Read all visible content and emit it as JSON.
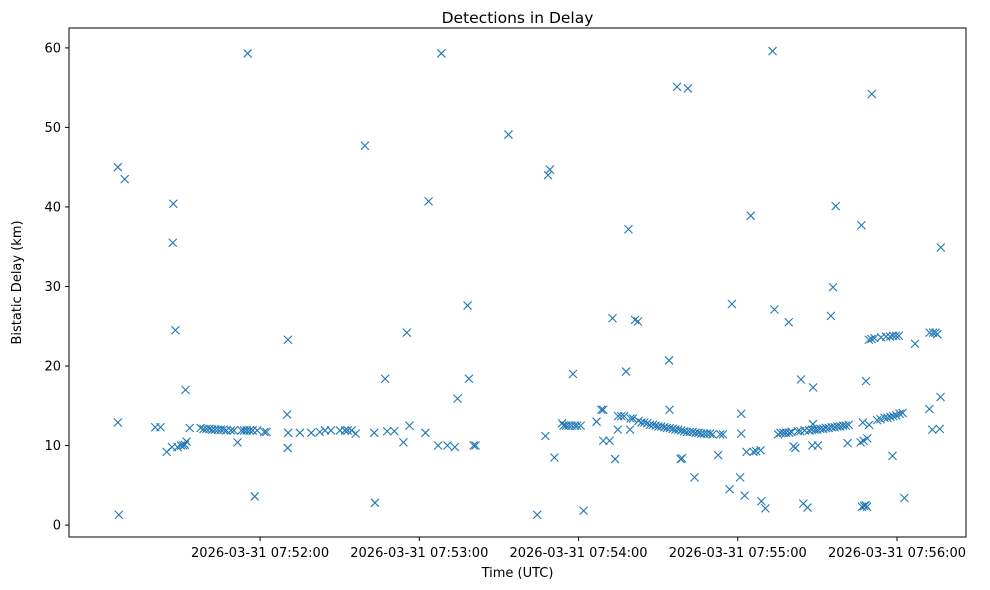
{
  "chart_data": {
    "type": "scatter",
    "title": "Detections in Delay",
    "xlabel": "Time (UTC)",
    "ylabel": "Bistatic Delay (km)",
    "marker": "x",
    "color": "#1f77b4",
    "x_unit": "seconds since 2026-03-31 07:51:00 UTC",
    "xlim": [
      -12,
      326
    ],
    "ylim": [
      -1.5,
      62.5
    ],
    "xticks": [
      {
        "value": 60,
        "label": "2026-03-31 07:52:00"
      },
      {
        "value": 120,
        "label": "2026-03-31 07:53:00"
      },
      {
        "value": 180,
        "label": "2026-03-31 07:54:00"
      },
      {
        "value": 240,
        "label": "2026-03-31 07:55:00"
      },
      {
        "value": 300,
        "label": "2026-03-31 07:56:00"
      }
    ],
    "yticks": [
      {
        "value": 0,
        "label": "0"
      },
      {
        "value": 10,
        "label": "10"
      },
      {
        "value": 20,
        "label": "20"
      },
      {
        "value": 30,
        "label": "30"
      },
      {
        "value": 40,
        "label": "40"
      },
      {
        "value": 50,
        "label": "50"
      },
      {
        "value": 60,
        "label": "60"
      }
    ],
    "points": [
      [
        6.4,
        45.0
      ],
      [
        6.4,
        12.9
      ],
      [
        6.8,
        1.3
      ],
      [
        9.0,
        43.5
      ],
      [
        20.5,
        12.3
      ],
      [
        22.5,
        12.3
      ],
      [
        24.8,
        9.2
      ],
      [
        27.3,
        40.4
      ],
      [
        27.1,
        35.5
      ],
      [
        28.1,
        24.5
      ],
      [
        26.8,
        9.8
      ],
      [
        28.9,
        9.8
      ],
      [
        30.2,
        10.0
      ],
      [
        31.1,
        10.0
      ],
      [
        31.9,
        17.0
      ],
      [
        32.3,
        10.5
      ],
      [
        31.7,
        10.1
      ],
      [
        33.5,
        12.2
      ],
      [
        37.6,
        12.2
      ],
      [
        38.7,
        12.1
      ],
      [
        39.8,
        12.1
      ],
      [
        40.9,
        12.1
      ],
      [
        41.9,
        12.0
      ],
      [
        43.0,
        12.0
      ],
      [
        44.1,
        12.0
      ],
      [
        45.2,
        12.0
      ],
      [
        46.2,
        12.0
      ],
      [
        47.3,
        11.9
      ],
      [
        49.0,
        11.9
      ],
      [
        50.1,
        11.9
      ],
      [
        51.5,
        10.4
      ],
      [
        53.0,
        11.9
      ],
      [
        54.0,
        11.9
      ],
      [
        55.0,
        11.9
      ],
      [
        55.3,
        59.3
      ],
      [
        56.1,
        11.9
      ],
      [
        57.2,
        11.9
      ],
      [
        58.0,
        3.6
      ],
      [
        58.9,
        11.9
      ],
      [
        61.6,
        11.7
      ],
      [
        62.4,
        11.7
      ],
      [
        70.5,
        23.3
      ],
      [
        70.2,
        13.9
      ],
      [
        70.4,
        9.7
      ],
      [
        70.6,
        11.6
      ],
      [
        75.0,
        11.6
      ],
      [
        79.3,
        11.6
      ],
      [
        82.5,
        11.7
      ],
      [
        84.5,
        11.9
      ],
      [
        86.7,
        11.9
      ],
      [
        90.1,
        11.9
      ],
      [
        92.0,
        11.9
      ],
      [
        93.0,
        11.9
      ],
      [
        94.5,
        11.9
      ],
      [
        96.0,
        11.5
      ],
      [
        99.5,
        47.7
      ],
      [
        103.0,
        11.6
      ],
      [
        103.3,
        2.8
      ],
      [
        107.1,
        18.4
      ],
      [
        107.9,
        11.8
      ],
      [
        110.6,
        11.8
      ],
      [
        114.0,
        10.4
      ],
      [
        115.3,
        24.2
      ],
      [
        116.3,
        12.5
      ],
      [
        122.3,
        11.6
      ],
      [
        123.5,
        40.7
      ],
      [
        127.1,
        10.0
      ],
      [
        128.3,
        59.3
      ],
      [
        130.6,
        10.0
      ],
      [
        133.4,
        9.8
      ],
      [
        134.4,
        15.9
      ],
      [
        138.2,
        27.6
      ],
      [
        138.7,
        18.4
      ],
      [
        140.5,
        10.0
      ],
      [
        141.2,
        10.0
      ],
      [
        153.6,
        49.1
      ],
      [
        164.4,
        1.3
      ],
      [
        167.5,
        11.2
      ],
      [
        168.5,
        44.0
      ],
      [
        169.2,
        44.7
      ],
      [
        170.9,
        8.5
      ],
      [
        173.8,
        12.8
      ],
      [
        174.4,
        12.5
      ],
      [
        175.3,
        12.5
      ],
      [
        176.3,
        12.5
      ],
      [
        177.4,
        12.5
      ],
      [
        177.9,
        19.0
      ],
      [
        178.6,
        12.5
      ],
      [
        179.5,
        12.5
      ],
      [
        180.8,
        12.5
      ],
      [
        181.9,
        1.8
      ],
      [
        186.8,
        13.0
      ],
      [
        188.6,
        14.5
      ],
      [
        189.3,
        14.5
      ],
      [
        189.3,
        10.6
      ],
      [
        191.7,
        10.6
      ],
      [
        192.8,
        26.0
      ],
      [
        193.8,
        8.3
      ],
      [
        194.8,
        12.0
      ],
      [
        194.9,
        13.7
      ],
      [
        196.1,
        13.7
      ],
      [
        197.2,
        13.7
      ],
      [
        197.9,
        19.3
      ],
      [
        198.8,
        37.2
      ],
      [
        199.4,
        12.0
      ],
      [
        199.6,
        13.4
      ],
      [
        200.5,
        13.4
      ],
      [
        201.3,
        25.8
      ],
      [
        202.4,
        25.6
      ],
      [
        202.6,
        13.1
      ],
      [
        203.7,
        12.9
      ],
      [
        204.8,
        12.9
      ],
      [
        205.9,
        12.8
      ],
      [
        206.9,
        12.6
      ],
      [
        208.0,
        12.6
      ],
      [
        209.1,
        12.5
      ],
      [
        210.1,
        12.4
      ],
      [
        211.2,
        12.4
      ],
      [
        212.3,
        12.3
      ],
      [
        213.3,
        12.2
      ],
      [
        214.4,
        12.2
      ],
      [
        214.1,
        20.7
      ],
      [
        214.3,
        14.5
      ],
      [
        215.5,
        12.1
      ],
      [
        216.5,
        12.0
      ],
      [
        217.1,
        55.1
      ],
      [
        217.6,
        12.0
      ],
      [
        218.5,
        8.3
      ],
      [
        218.7,
        11.9
      ],
      [
        219.0,
        8.4
      ],
      [
        219.8,
        11.8
      ],
      [
        220.8,
        11.7
      ],
      [
        221.2,
        54.9
      ],
      [
        221.9,
        11.7
      ],
      [
        223.0,
        11.7
      ],
      [
        223.7,
        6.0
      ],
      [
        224.1,
        11.6
      ],
      [
        225.2,
        11.6
      ],
      [
        226.2,
        11.5
      ],
      [
        227.3,
        11.5
      ],
      [
        228.4,
        11.5
      ],
      [
        229.5,
        11.5
      ],
      [
        230.5,
        11.4
      ],
      [
        232.6,
        8.8
      ],
      [
        233.4,
        11.4
      ],
      [
        234.4,
        11.4
      ],
      [
        236.9,
        4.5
      ],
      [
        237.8,
        27.8
      ],
      [
        240.9,
        6.0
      ],
      [
        241.3,
        14.0
      ],
      [
        241.3,
        11.5
      ],
      [
        242.6,
        3.7
      ],
      [
        243.3,
        9.2
      ],
      [
        244.9,
        38.9
      ],
      [
        245.9,
        9.2
      ],
      [
        246.9,
        9.3
      ],
      [
        248.6,
        9.4
      ],
      [
        248.9,
        3.0
      ],
      [
        250.4,
        2.1
      ],
      [
        253.1,
        59.6
      ],
      [
        253.8,
        27.1
      ],
      [
        255.2,
        11.4
      ],
      [
        256.1,
        11.6
      ],
      [
        257.2,
        11.6
      ],
      [
        258.2,
        11.6
      ],
      [
        259.2,
        25.5
      ],
      [
        259.4,
        11.6
      ],
      [
        260.3,
        11.7
      ],
      [
        261.0,
        9.9
      ],
      [
        261.7,
        9.7
      ],
      [
        262.6,
        11.8
      ],
      [
        263.6,
        11.8
      ],
      [
        263.8,
        18.3
      ],
      [
        264.7,
        2.7
      ],
      [
        265.2,
        11.9
      ],
      [
        266.3,
        2.2
      ],
      [
        266.9,
        11.9
      ],
      [
        268.0,
        12.0
      ],
      [
        268.1,
        10.0
      ],
      [
        268.4,
        17.3
      ],
      [
        268.3,
        12.7
      ],
      [
        269.1,
        12.0
      ],
      [
        270.0,
        12.0
      ],
      [
        270.2,
        10.0
      ],
      [
        271.1,
        12.1
      ],
      [
        272.2,
        12.1
      ],
      [
        273.2,
        12.2
      ],
      [
        274.3,
        12.2
      ],
      [
        275.1,
        26.3
      ],
      [
        275.4,
        12.3
      ],
      [
        275.9,
        29.9
      ],
      [
        276.5,
        12.3
      ],
      [
        276.9,
        40.1
      ],
      [
        277.5,
        12.4
      ],
      [
        278.6,
        12.4
      ],
      [
        279.7,
        12.5
      ],
      [
        280.7,
        12.5
      ],
      [
        281.4,
        10.3
      ],
      [
        281.8,
        12.6
      ],
      [
        286.6,
        37.7
      ],
      [
        286.3,
        10.4
      ],
      [
        286.8,
        2.3
      ],
      [
        287.1,
        12.9
      ],
      [
        287.4,
        10.6
      ],
      [
        287.6,
        2.4
      ],
      [
        288.2,
        2.5
      ],
      [
        288.3,
        18.1
      ],
      [
        288.7,
        2.3
      ],
      [
        288.8,
        10.9
      ],
      [
        289.4,
        23.3
      ],
      [
        289.5,
        12.6
      ],
      [
        290.5,
        54.2
      ],
      [
        290.4,
        23.4
      ],
      [
        291.5,
        23.5
      ],
      [
        292.5,
        13.2
      ],
      [
        293.8,
        13.3
      ],
      [
        294.0,
        23.6
      ],
      [
        295.3,
        13.5
      ],
      [
        295.9,
        23.7
      ],
      [
        296.4,
        13.5
      ],
      [
        297.4,
        23.7
      ],
      [
        297.5,
        13.6
      ],
      [
        298.5,
        23.8
      ],
      [
        298.6,
        13.7
      ],
      [
        298.3,
        8.7
      ],
      [
        299.7,
        13.8
      ],
      [
        299.6,
        23.8
      ],
      [
        300.7,
        23.8
      ],
      [
        301.0,
        14.0
      ],
      [
        302.1,
        14.1
      ],
      [
        302.8,
        3.4
      ],
      [
        306.8,
        22.8
      ],
      [
        312.2,
        14.6
      ],
      [
        312.3,
        24.2
      ],
      [
        313.3,
        12.0
      ],
      [
        313.6,
        24.2
      ],
      [
        314.5,
        24.2
      ],
      [
        315.2,
        24.0
      ],
      [
        316.1,
        12.1
      ],
      [
        316.4,
        16.1
      ],
      [
        316.5,
        34.9
      ]
    ]
  }
}
